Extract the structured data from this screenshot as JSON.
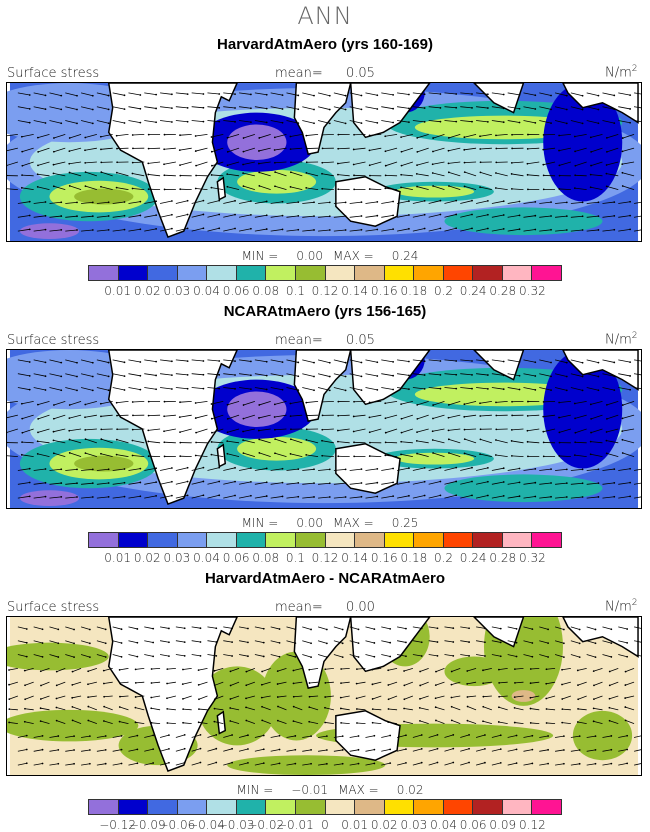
{
  "suptitle": "ANN",
  "colors": [
    "#9370DB",
    "#0000CD",
    "#4169E1",
    "#7B9EF0",
    "#B0E0E6",
    "#20B2AA",
    "#C1F060",
    "#97BD32",
    "#F5E6C0",
    "#DEB887",
    "#FFE000",
    "#FFA500",
    "#FF4500",
    "#B22222",
    "#FFB6C1",
    "#FF1493"
  ],
  "panels": [
    {
      "title": "HarvardAtmAero (yrs 160-169)",
      "variable": "Surface stress",
      "mean_label": "mean=",
      "mean": "0.05",
      "units": "N/m",
      "units_sup": "2",
      "min_label": "MIN =",
      "min": "0.00",
      "max_label": "MAX =",
      "max": "0.24",
      "levels": [
        "0.01",
        "0.02",
        "0.03",
        "0.04",
        "0.06",
        "0.08",
        "0.1",
        "0.12",
        "0.14",
        "0.16",
        "0.18",
        "0.2",
        "0.24",
        "0.28",
        "0.32"
      ]
    },
    {
      "title": "NCARAtmAero (yrs 156-165)",
      "variable": "Surface stress",
      "mean_label": "mean=",
      "mean": "0.05",
      "units": "N/m",
      "units_sup": "2",
      "min_label": "MIN =",
      "min": "0.00",
      "max_label": "MAX =",
      "max": "0.25",
      "levels": [
        "0.01",
        "0.02",
        "0.03",
        "0.04",
        "0.06",
        "0.08",
        "0.1",
        "0.12",
        "0.14",
        "0.16",
        "0.18",
        "0.2",
        "0.24",
        "0.28",
        "0.32"
      ]
    },
    {
      "title": "HarvardAtmAero - NCARAtmAero",
      "variable": "Surface stress",
      "mean_label": "mean=",
      "mean": "0.00",
      "units": "N/m",
      "units_sup": "2",
      "min_label": "MIN =",
      "min": "−0.01",
      "max_label": "MAX =",
      "max": "0.02",
      "levels": [
        "−0.12",
        "−0.09",
        "−0.06",
        "−0.04",
        "−0.03",
        "−0.02",
        "−0.01",
        "0",
        "0.01",
        "0.02",
        "0.03",
        "0.04",
        "0.06",
        "0.09",
        "0.12"
      ]
    }
  ]
}
